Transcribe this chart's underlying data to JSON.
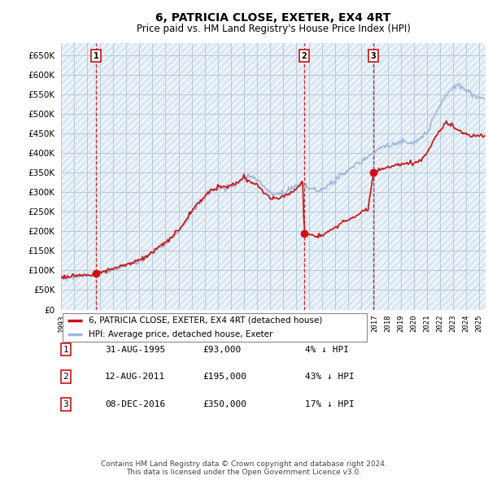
{
  "title": "6, PATRICIA CLOSE, EXETER, EX4 4RT",
  "subtitle": "Price paid vs. HM Land Registry's House Price Index (HPI)",
  "ylabel_ticks": [
    0,
    50000,
    100000,
    150000,
    200000,
    250000,
    300000,
    350000,
    400000,
    450000,
    500000,
    550000,
    600000,
    650000
  ],
  "ylim": [
    0,
    680000
  ],
  "xlim_start": 1993.0,
  "xlim_end": 2025.5,
  "sale_dates": [
    1995.67,
    2011.62,
    2016.92
  ],
  "sale_prices": [
    93000,
    195000,
    350000
  ],
  "sale_labels": [
    "1",
    "2",
    "3"
  ],
  "hpi_line_color": "#a0b8d8",
  "price_line_color": "#cc1111",
  "background_color": "#dce8f4",
  "grid_color": "#b8c8dc",
  "legend_label_red": "6, PATRICIA CLOSE, EXETER, EX4 4RT (detached house)",
  "legend_label_blue": "HPI: Average price, detached house, Exeter",
  "footnote1": "Contains HM Land Registry data © Crown copyright and database right 2024.",
  "footnote2": "This data is licensed under the Open Government Licence v3.0.",
  "table_rows": [
    [
      "1",
      "31-AUG-1995",
      "£93,000",
      "4% ↓ HPI"
    ],
    [
      "2",
      "12-AUG-2011",
      "£195,000",
      "43% ↓ HPI"
    ],
    [
      "3",
      "08-DEC-2016",
      "£350,000",
      "17% ↓ HPI"
    ]
  ]
}
